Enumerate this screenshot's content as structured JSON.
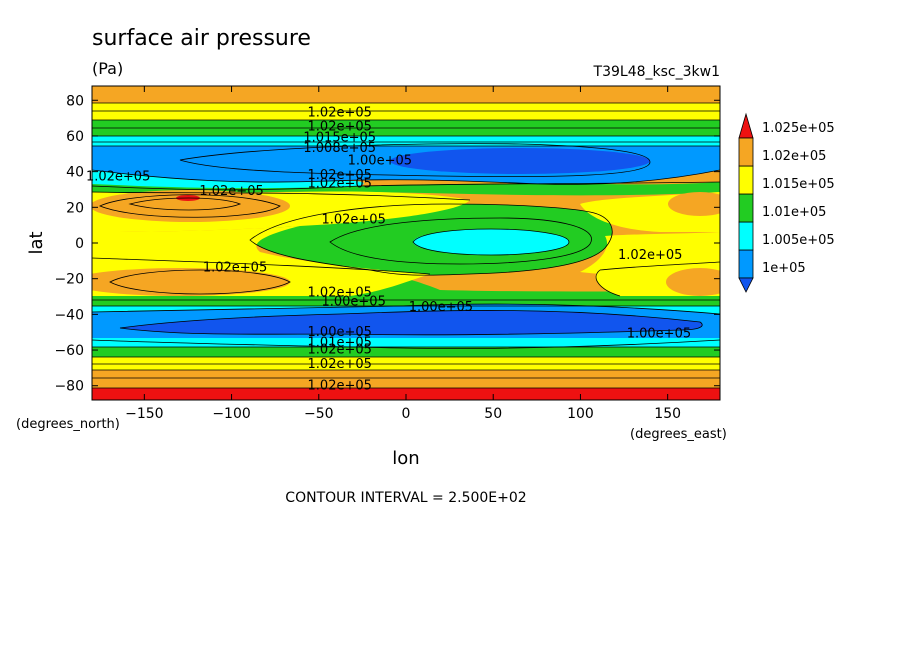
{
  "title": "surface air pressure",
  "units": "(Pa)",
  "run_label": "T39L48_ksc_3kw1",
  "footer": "CONTOUR INTERVAL = 2.500E+02",
  "colors": {
    "red": "#ee1111",
    "orange": "#f5a623",
    "yellow": "#ffff00",
    "green": "#22cc22",
    "cyan": "#00ffff",
    "lightblue": "#0099ff",
    "blue": "#1155ee"
  },
  "chart_data": {
    "type": "heatmap",
    "title": "surface air pressure",
    "units": "(Pa)",
    "xlabel": "lon",
    "xunits": "(degrees_east)",
    "ylabel": "lat",
    "yunits": "(degrees_north)",
    "xlim": [
      -180,
      180
    ],
    "ylim": [
      -88,
      88
    ],
    "xticks": [
      -150,
      -100,
      -50,
      0,
      50,
      100,
      150
    ],
    "xtick_labels": [
      "−150",
      "−100",
      "−50",
      "0",
      "50",
      "100",
      "150"
    ],
    "yticks": [
      -80,
      -60,
      -40,
      -20,
      0,
      20,
      40,
      60,
      80
    ],
    "ytick_labels": [
      "−80",
      "−60",
      "−40",
      "−20",
      "0",
      "20",
      "40",
      "60",
      "80"
    ],
    "contour_interval": 250,
    "colorbar": {
      "levels": [
        100000,
        100500,
        101000,
        101500,
        102000,
        102500
      ],
      "labels": [
        "1e+05",
        "1.005e+05",
        "1.01e+05",
        "1.015e+05",
        "1.02e+05",
        "1.025e+05"
      ],
      "band_colors": [
        "#1155ee",
        "#0099ff",
        "#00ffff",
        "#22cc22",
        "#ffff00",
        "#f5a623",
        "#ee1111"
      ]
    },
    "contour_labels": [
      {
        "text": "1.02e+05",
        "lon": -38,
        "lat": 71
      },
      {
        "text": "1.02e+05",
        "lon": -38,
        "lat": 63
      },
      {
        "text": "1.015e+05",
        "lon": -38,
        "lat": 57
      },
      {
        "text": "1.008e+05",
        "lon": -38,
        "lat": 51
      },
      {
        "text": "1.00e+05",
        "lon": -15,
        "lat": 44
      },
      {
        "text": "1.02e+05",
        "lon": -165,
        "lat": 35
      },
      {
        "text": "1.02e+05",
        "lon": -38,
        "lat": 36
      },
      {
        "text": "1.02e+05",
        "lon": -38,
        "lat": 31
      },
      {
        "text": "1.02e+05",
        "lon": -100,
        "lat": 27
      },
      {
        "text": "1.02e+05",
        "lon": -30,
        "lat": 11
      },
      {
        "text": "1.02e+05",
        "lon": 140,
        "lat": -9
      },
      {
        "text": "1.02e+05",
        "lon": -98,
        "lat": -16
      },
      {
        "text": "1.02e+05",
        "lon": -38,
        "lat": -30
      },
      {
        "text": "1.00e+05",
        "lon": -30,
        "lat": -35
      },
      {
        "text": "1.00e+05",
        "lon": 20,
        "lat": -38
      },
      {
        "text": "1.00e+05",
        "lon": -38,
        "lat": -52
      },
      {
        "text": "1.00e+05",
        "lon": 145,
        "lat": -53
      },
      {
        "text": "1.01e+05",
        "lon": -38,
        "lat": -58
      },
      {
        "text": "1.02e+05",
        "lon": -38,
        "lat": -62
      },
      {
        "text": "1.02e+05",
        "lon": -38,
        "lat": -70
      },
      {
        "text": "1.02e+05",
        "lon": -38,
        "lat": -82
      }
    ],
    "grid": false,
    "legend": "right"
  }
}
